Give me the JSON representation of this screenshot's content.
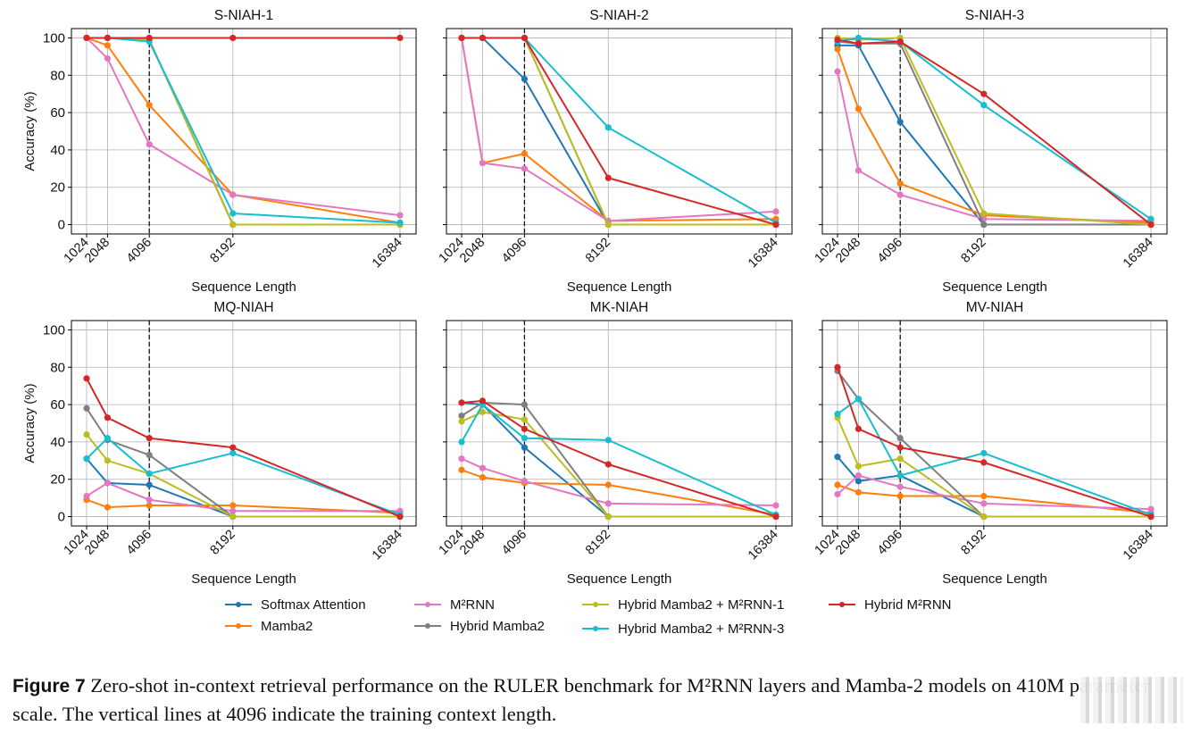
{
  "chart_data": [
    {
      "type": "line",
      "title": "S-NIAH-1",
      "xlabel": "Sequence Length",
      "ylabel": "Accuracy (%)",
      "x": [
        1024,
        2048,
        4096,
        8192,
        16384
      ],
      "x_tick_labels": [
        "1024",
        "2048",
        "4096",
        "8192",
        "16384"
      ],
      "ylim": [
        -5,
        105
      ],
      "y_ticks": [
        0,
        20,
        40,
        60,
        80,
        100
      ],
      "grid": true,
      "vline": 4096,
      "series": [
        {
          "name": "Softmax Attention",
          "values": [
            100,
            100,
            99,
            0,
            0
          ]
        },
        {
          "name": "Mamba2",
          "values": [
            100,
            96,
            64,
            16,
            1
          ]
        },
        {
          "name": "M²RNN",
          "values": [
            100,
            89,
            43,
            16,
            5
          ]
        },
        {
          "name": "Hybrid Mamba2",
          "values": [
            100,
            100,
            99,
            0,
            0
          ]
        },
        {
          "name": "Hybrid Mamba2 + M²RNN-1",
          "values": [
            100,
            100,
            99,
            0,
            0
          ]
        },
        {
          "name": "Hybrid Mamba2 + M²RNN-3",
          "values": [
            100,
            100,
            98,
            6,
            1
          ]
        },
        {
          "name": "Hybrid M²RNN",
          "values": [
            100,
            100,
            100,
            100,
            100
          ]
        }
      ]
    },
    {
      "type": "line",
      "title": "S-NIAH-2",
      "xlabel": "Sequence Length",
      "ylabel": "",
      "x": [
        1024,
        2048,
        4096,
        8192,
        16384
      ],
      "x_tick_labels": [
        "1024",
        "2048",
        "4096",
        "8192",
        "16384"
      ],
      "ylim": [
        -5,
        105
      ],
      "y_ticks": [
        0,
        20,
        40,
        60,
        80,
        100
      ],
      "grid": true,
      "vline": 4096,
      "series": [
        {
          "name": "Softmax Attention",
          "values": [
            100,
            100,
            78,
            0,
            0
          ]
        },
        {
          "name": "Mamba2",
          "values": [
            100,
            33,
            38,
            2,
            3
          ]
        },
        {
          "name": "M²RNN",
          "values": [
            100,
            33,
            30,
            2,
            7
          ]
        },
        {
          "name": "Hybrid Mamba2",
          "values": [
            100,
            100,
            100,
            0,
            0
          ]
        },
        {
          "name": "Hybrid Mamba2 + M²RNN-1",
          "values": [
            100,
            100,
            100,
            0,
            0
          ]
        },
        {
          "name": "Hybrid Mamba2 + M²RNN-3",
          "values": [
            100,
            100,
            100,
            52,
            1
          ]
        },
        {
          "name": "Hybrid M²RNN",
          "values": [
            100,
            100,
            100,
            25,
            0
          ]
        }
      ]
    },
    {
      "type": "line",
      "title": "S-NIAH-3",
      "xlabel": "Sequence Length",
      "ylabel": "",
      "x": [
        1024,
        2048,
        4096,
        8192,
        16384
      ],
      "x_tick_labels": [
        "1024",
        "2048",
        "4096",
        "8192",
        "16384"
      ],
      "ylim": [
        -5,
        105
      ],
      "y_ticks": [
        0,
        20,
        40,
        60,
        80,
        100
      ],
      "grid": true,
      "vline": 4096,
      "series": [
        {
          "name": "Softmax Attention",
          "values": [
            96,
            96,
            55,
            0,
            0
          ]
        },
        {
          "name": "Mamba2",
          "values": [
            94,
            62,
            22,
            5,
            1
          ]
        },
        {
          "name": "M²RNN",
          "values": [
            82,
            29,
            16,
            3,
            2
          ]
        },
        {
          "name": "Hybrid Mamba2",
          "values": [
            98,
            97,
            97,
            0,
            0
          ]
        },
        {
          "name": "Hybrid Mamba2 + M²RNN-1",
          "values": [
            100,
            99,
            100,
            6,
            0
          ]
        },
        {
          "name": "Hybrid Mamba2 + M²RNN-3",
          "values": [
            98,
            100,
            98,
            64,
            3
          ]
        },
        {
          "name": "Hybrid M²RNN",
          "values": [
            99,
            97,
            98,
            70,
            0
          ]
        }
      ]
    },
    {
      "type": "line",
      "title": "MQ-NIAH",
      "xlabel": "Sequence Length",
      "ylabel": "Accuracy (%)",
      "x": [
        1024,
        2048,
        4096,
        8192,
        16384
      ],
      "x_tick_labels": [
        "1024",
        "2048",
        "4096",
        "8192",
        "16384"
      ],
      "ylim": [
        -5,
        105
      ],
      "y_ticks": [
        0,
        20,
        40,
        60,
        80,
        100
      ],
      "grid": true,
      "vline": 4096,
      "series": [
        {
          "name": "Softmax Attention",
          "values": [
            31,
            18,
            17,
            0,
            0
          ]
        },
        {
          "name": "Mamba2",
          "values": [
            9,
            5,
            6,
            6,
            2
          ]
        },
        {
          "name": "M²RNN",
          "values": [
            11,
            18,
            9,
            3,
            3
          ]
        },
        {
          "name": "Hybrid Mamba2",
          "values": [
            58,
            41,
            33,
            0,
            0
          ]
        },
        {
          "name": "Hybrid Mamba2 + M²RNN-1",
          "values": [
            44,
            30,
            23,
            0,
            0
          ]
        },
        {
          "name": "Hybrid Mamba2 + M²RNN-3",
          "values": [
            31,
            42,
            23,
            34,
            1
          ]
        },
        {
          "name": "Hybrid M²RNN",
          "values": [
            74,
            53,
            42,
            37,
            0
          ]
        }
      ]
    },
    {
      "type": "line",
      "title": "MK-NIAH",
      "xlabel": "Sequence Length",
      "ylabel": "",
      "x": [
        1024,
        2048,
        4096,
        8192,
        16384
      ],
      "x_tick_labels": [
        "1024",
        "2048",
        "4096",
        "8192",
        "16384"
      ],
      "ylim": [
        -5,
        105
      ],
      "y_ticks": [
        0,
        20,
        40,
        60,
        80,
        100
      ],
      "grid": true,
      "vline": 4096,
      "series": [
        {
          "name": "Softmax Attention",
          "values": [
            61,
            60,
            37,
            0,
            0
          ]
        },
        {
          "name": "Mamba2",
          "values": [
            25,
            21,
            18,
            17,
            1
          ]
        },
        {
          "name": "M²RNN",
          "values": [
            31,
            26,
            19,
            7,
            6
          ]
        },
        {
          "name": "Hybrid Mamba2",
          "values": [
            54,
            61,
            60,
            0,
            0
          ]
        },
        {
          "name": "Hybrid Mamba2 + M²RNN-1",
          "values": [
            51,
            56,
            52,
            0,
            0
          ]
        },
        {
          "name": "Hybrid Mamba2 + M²RNN-3",
          "values": [
            40,
            60,
            42,
            41,
            1
          ]
        },
        {
          "name": "Hybrid M²RNN",
          "values": [
            61,
            62,
            47,
            28,
            0
          ]
        }
      ]
    },
    {
      "type": "line",
      "title": "MV-NIAH",
      "xlabel": "Sequence Length",
      "ylabel": "",
      "x": [
        1024,
        2048,
        4096,
        8192,
        16384
      ],
      "x_tick_labels": [
        "1024",
        "2048",
        "4096",
        "8192",
        "16384"
      ],
      "ylim": [
        -5,
        105
      ],
      "y_ticks": [
        0,
        20,
        40,
        60,
        80,
        100
      ],
      "grid": true,
      "vline": 4096,
      "series": [
        {
          "name": "Softmax Attention",
          "values": [
            32,
            19,
            22,
            0,
            0
          ]
        },
        {
          "name": "Mamba2",
          "values": [
            17,
            13,
            11,
            11,
            2
          ]
        },
        {
          "name": "M²RNN",
          "values": [
            12,
            22,
            16,
            7,
            4
          ]
        },
        {
          "name": "Hybrid Mamba2",
          "values": [
            78,
            63,
            42,
            0,
            0
          ]
        },
        {
          "name": "Hybrid Mamba2 + M²RNN-1",
          "values": [
            53,
            27,
            31,
            0,
            0
          ]
        },
        {
          "name": "Hybrid Mamba2 + M²RNN-3",
          "values": [
            55,
            63,
            22,
            34,
            1
          ]
        },
        {
          "name": "Hybrid M²RNN",
          "values": [
            80,
            47,
            37,
            29,
            0
          ]
        }
      ]
    }
  ],
  "legend": {
    "placement": "bottom-center",
    "items": [
      {
        "name": "Softmax Attention",
        "color": "#1f77b4"
      },
      {
        "name": "Mamba2",
        "color": "#ff7f0e"
      },
      {
        "name": "M²RNN",
        "color": "#e377c2"
      },
      {
        "name": "Hybrid Mamba2",
        "color": "#7f7f7f"
      },
      {
        "name": "Hybrid Mamba2 + M²RNN-1",
        "color": "#bcbd22"
      },
      {
        "name": "Hybrid Mamba2 + M²RNN-3",
        "color": "#17becf"
      },
      {
        "name": "Hybrid M²RNN",
        "color": "#d62728"
      }
    ]
  },
  "series_colors": {
    "Softmax Attention": "#1f77b4",
    "Mamba2": "#ff7f0e",
    "M²RNN": "#e377c2",
    "Hybrid Mamba2": "#7f7f7f",
    "Hybrid Mamba2 + M²RNN-1": "#bcbd22",
    "Hybrid Mamba2 + M²RNN-3": "#17becf",
    "Hybrid M²RNN": "#d62728"
  },
  "caption": {
    "label": "Figure 7",
    "text": " Zero-shot in-context retrieval performance on the RULER benchmark for M²RNN layers and Mamba-2 models on 410M parameter scale. The vertical lines at 4096 indicate the training context length."
  }
}
